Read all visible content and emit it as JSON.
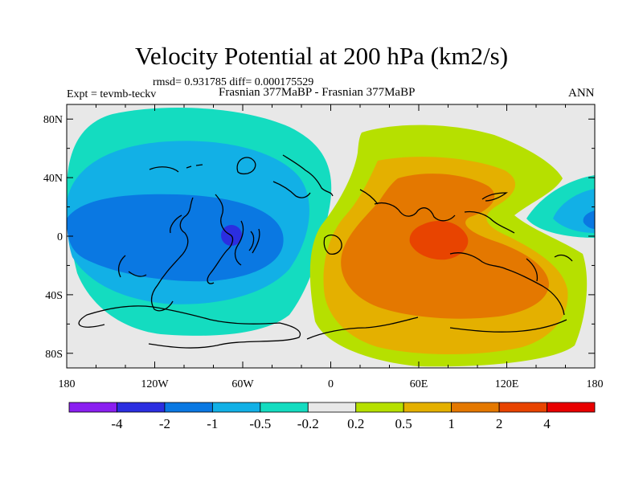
{
  "chart_data": {
    "type": "heatmap",
    "title": "Velocity Potential at 200 hPa (km2/s)",
    "stats_text": "rmsd= 0.931785 diff= 0.000175529",
    "expt_text": "Expt = tevmb-teckv",
    "subtitle": "Frasnian 377MaBP - Frasnian 377MaBP",
    "season": "ANN",
    "xlabel": "",
    "ylabel": "",
    "xlim": [
      -180,
      180
    ],
    "ylim": [
      -90,
      90
    ],
    "x_ticks": [
      {
        "value": -180,
        "label": "180"
      },
      {
        "value": -120,
        "label": "120W"
      },
      {
        "value": -60,
        "label": "60W"
      },
      {
        "value": 0,
        "label": "0"
      },
      {
        "value": 60,
        "label": "60E"
      },
      {
        "value": 120,
        "label": "120E"
      },
      {
        "value": 180,
        "label": "180"
      }
    ],
    "y_ticks": [
      {
        "value": 80,
        "label": "80N"
      },
      {
        "value": 40,
        "label": "40N"
      },
      {
        "value": 0,
        "label": "0"
      },
      {
        "value": -40,
        "label": "40S"
      },
      {
        "value": -80,
        "label": "80S"
      }
    ],
    "colorbar": {
      "colors": [
        "#8a1ff0",
        "#2b2ee0",
        "#0a78e2",
        "#12b0e6",
        "#14dcc0",
        "#e8e8e8",
        "#b6e000",
        "#e4b000",
        "#e47800",
        "#e84400",
        "#e80000"
      ],
      "labels": [
        "-4",
        "-2",
        "-1",
        "-0.5",
        "-0.2",
        "0.2",
        "0.5",
        "1",
        "2",
        "4"
      ]
    },
    "fields": [
      {
        "name": "negative-anomaly",
        "lon_center": -100,
        "lat_center": 0,
        "peak": -2.2,
        "sign": "negative"
      },
      {
        "name": "positive-anomaly",
        "lon_center": 68,
        "lat_center": 0,
        "peak": 2.6,
        "sign": "positive"
      }
    ]
  }
}
